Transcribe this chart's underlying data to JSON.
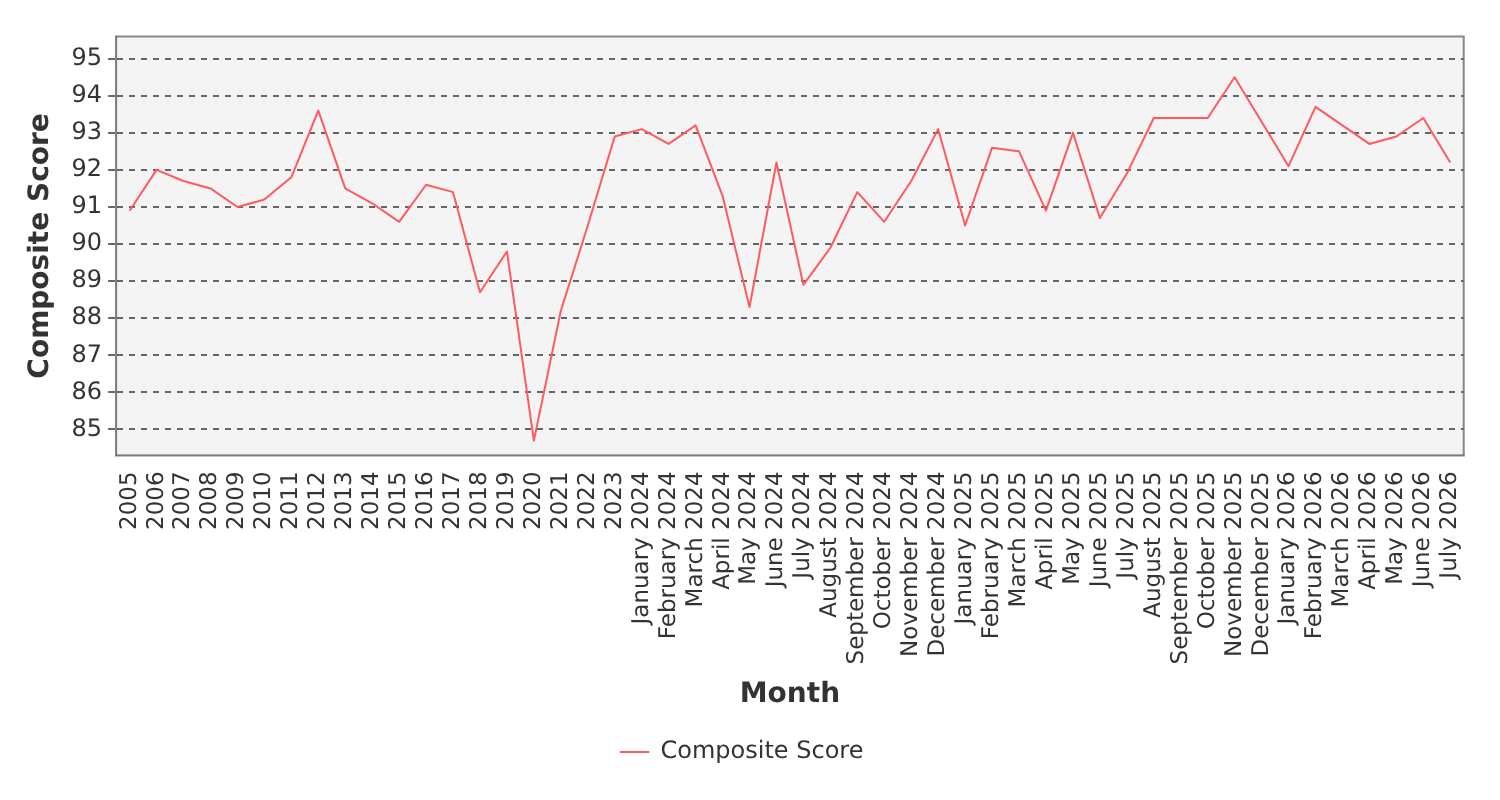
{
  "chart_data": {
    "type": "line",
    "xlabel": "Month",
    "ylabel": "Composite Score",
    "categories": [
      "2005",
      "2006",
      "2007",
      "2008",
      "2009",
      "2010",
      "2011",
      "2012",
      "2013",
      "2014",
      "2015",
      "2016",
      "2017",
      "2018",
      "2019",
      "2020",
      "2021",
      "2022",
      "2023",
      "January 2024",
      "February 2024",
      "March 2024",
      "April 2024",
      "May 2024",
      "June 2024",
      "July 2024",
      "August 2024",
      "September 2024",
      "October 2024",
      "November 2024",
      "December 2024",
      "January 2025",
      "February 2025",
      "March 2025",
      "April 2025",
      "May 2025",
      "June 2025",
      "July 2025",
      "August 2025",
      "September 2025",
      "October 2025",
      "November 2025",
      "December 2025",
      "January 2026",
      "February 2026",
      "March 2026",
      "April 2026",
      "May 2026",
      "June 2026",
      "July 2026"
    ],
    "series": [
      {
        "name": "Composite Score",
        "color": "#ff5a5f",
        "values": [
          90.9,
          92.0,
          91.7,
          91.5,
          91.0,
          91.2,
          91.8,
          93.6,
          91.5,
          91.1,
          90.6,
          91.6,
          91.4,
          88.7,
          89.8,
          84.7,
          88.2,
          90.5,
          92.9,
          93.1,
          92.7,
          93.2,
          91.3,
          88.3,
          92.2,
          88.9,
          89.9,
          91.4,
          90.6,
          91.7,
          93.1,
          90.5,
          92.6,
          92.5,
          90.9,
          93.0,
          90.7,
          91.9,
          93.4,
          93.4,
          93.4,
          94.5,
          93.3,
          92.1,
          93.7,
          93.2,
          92.7,
          92.9,
          93.4,
          92.2
        ]
      }
    ],
    "ylim": [
      84.3,
      95.6
    ],
    "yticks": [
      85,
      86,
      87,
      88,
      89,
      90,
      91,
      92,
      93,
      94,
      95
    ],
    "grid": "y",
    "legend": "bottom",
    "marker": "none",
    "line_style": "solid"
  }
}
